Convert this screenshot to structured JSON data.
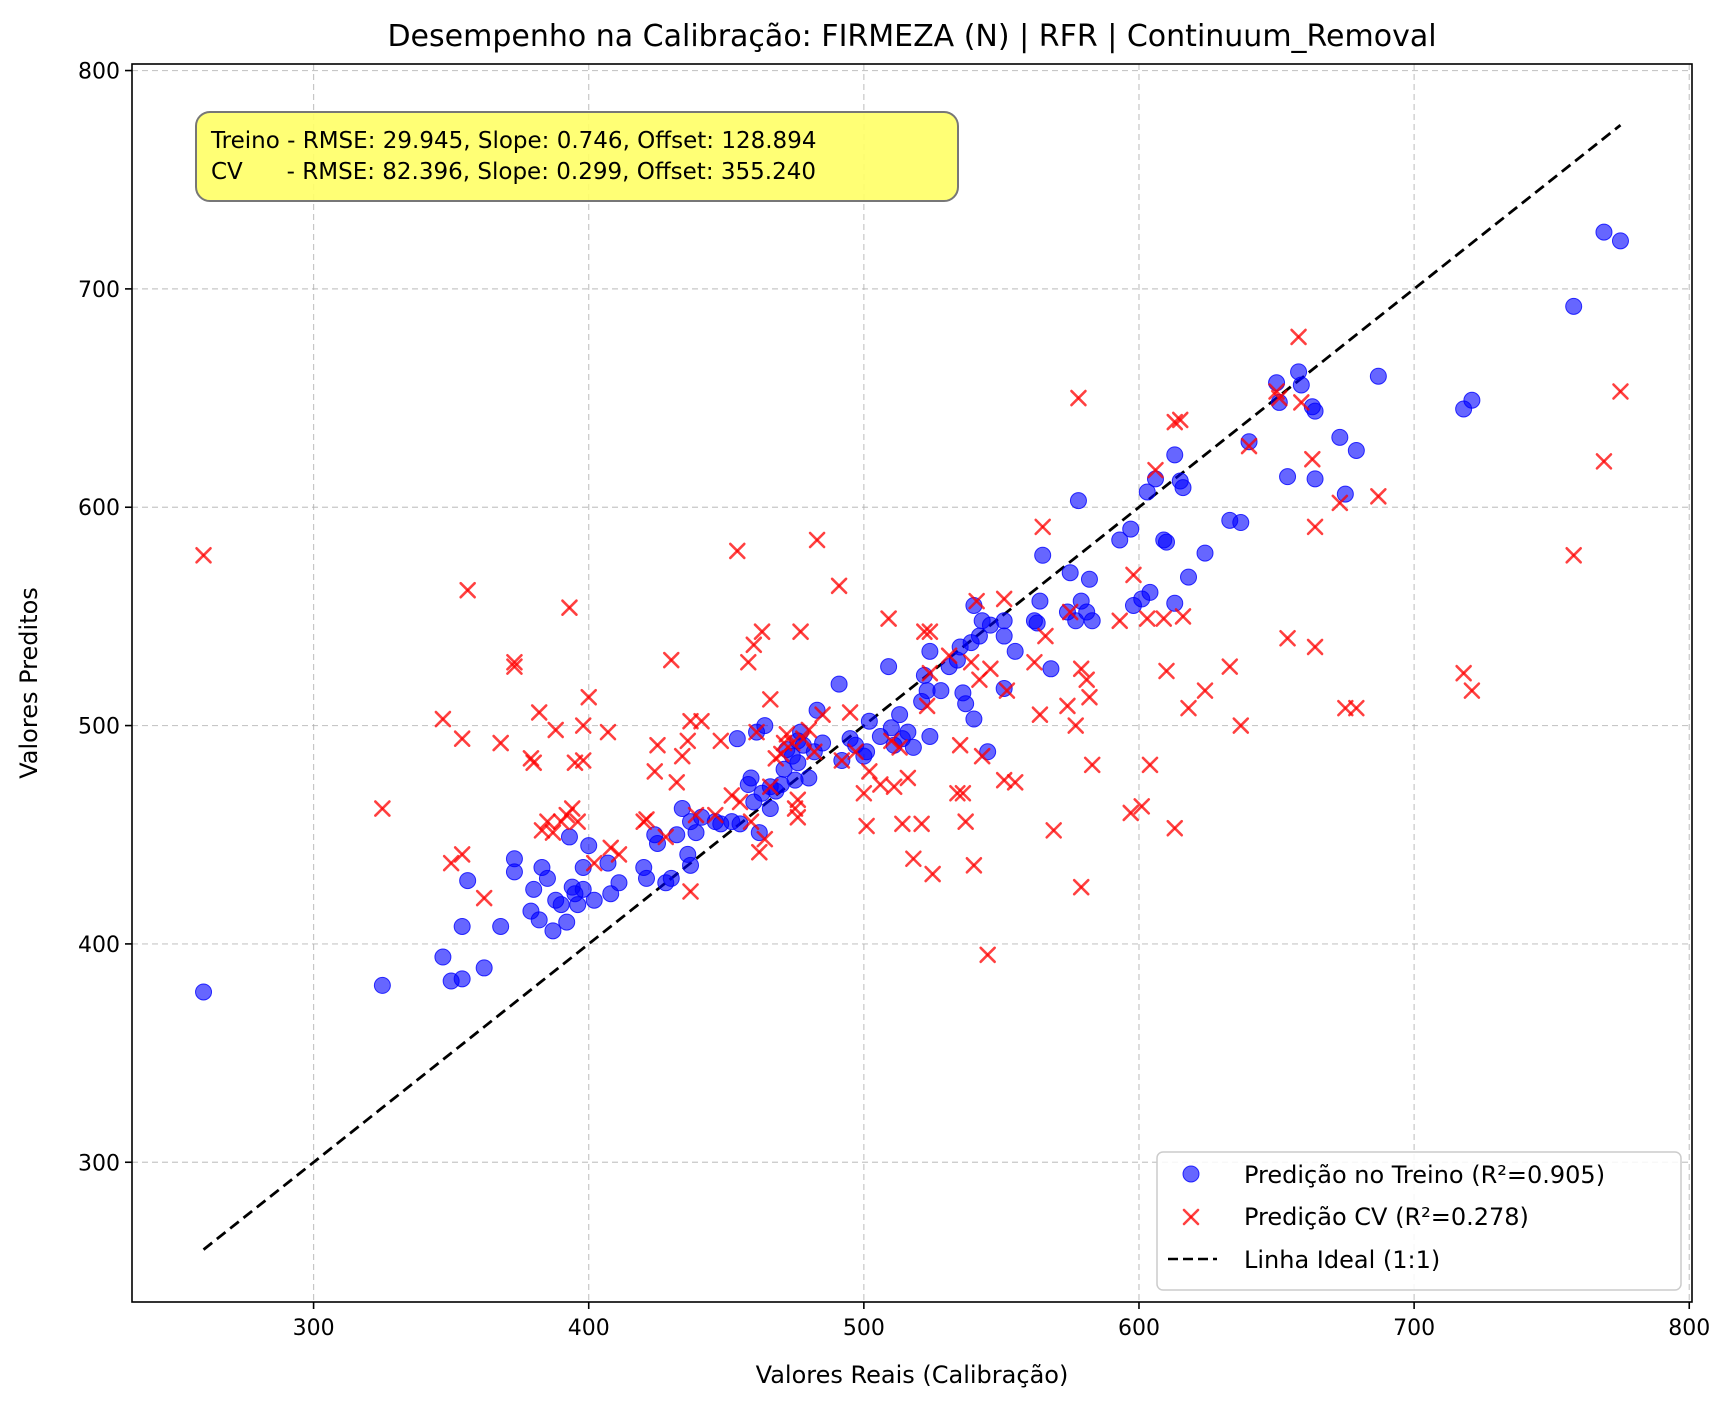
{
  "chart_data": {
    "type": "scatter",
    "title": "Desempenho na Calibração: FIRMEZA (N) | RFR | Continuum_Removal",
    "xlabel": "Valores Reais (Calibração)",
    "ylabel": "Valores Preditos",
    "xlim": [
      234,
      801
    ],
    "ylim": [
      236,
      803
    ],
    "xticks": [
      300,
      400,
      500,
      600,
      700,
      800
    ],
    "yticks": [
      300,
      400,
      500,
      600,
      700,
      800
    ],
    "grid": true,
    "legend_position": "lower-right",
    "annotation": {
      "line1": "Treino - RMSE: 29.945, Slope: 0.746, Offset: 128.894",
      "line2": "CV      - RMSE: 82.396, Slope: 0.299, Offset: 355.240",
      "background": "#ffff66"
    },
    "series": [
      {
        "name": "Predição no Treino (R²=0.905)",
        "marker": "circle",
        "color": "#0000ff",
        "points": [
          [
            260,
            378
          ],
          [
            325,
            381
          ],
          [
            347,
            394
          ],
          [
            350,
            383
          ],
          [
            354,
            384
          ],
          [
            354,
            408
          ],
          [
            356,
            429
          ],
          [
            362,
            389
          ],
          [
            368,
            408
          ],
          [
            373,
            439
          ],
          [
            373,
            433
          ],
          [
            379,
            415
          ],
          [
            380,
            425
          ],
          [
            382,
            411
          ],
          [
            383,
            435
          ],
          [
            385,
            430
          ],
          [
            387,
            406
          ],
          [
            388,
            420
          ],
          [
            390,
            418
          ],
          [
            392,
            410
          ],
          [
            393,
            449
          ],
          [
            394,
            426
          ],
          [
            395,
            423
          ],
          [
            396,
            418
          ],
          [
            398,
            425
          ],
          [
            398,
            435
          ],
          [
            400,
            445
          ],
          [
            402,
            420
          ],
          [
            407,
            437
          ],
          [
            408,
            423
          ],
          [
            411,
            428
          ],
          [
            420,
            435
          ],
          [
            421,
            430
          ],
          [
            424,
            450
          ],
          [
            425,
            446
          ],
          [
            428,
            428
          ],
          [
            430,
            430
          ],
          [
            432,
            450
          ],
          [
            434,
            462
          ],
          [
            436,
            441
          ],
          [
            437,
            436
          ],
          [
            437,
            456
          ],
          [
            439,
            451
          ],
          [
            441,
            458
          ],
          [
            446,
            456
          ],
          [
            448,
            455
          ],
          [
            452,
            456
          ],
          [
            454,
            494
          ],
          [
            455,
            455
          ],
          [
            458,
            473
          ],
          [
            459,
            476
          ],
          [
            460,
            465
          ],
          [
            461,
            497
          ],
          [
            462,
            451
          ],
          [
            463,
            469
          ],
          [
            464,
            500
          ],
          [
            466,
            462
          ],
          [
            466,
            472
          ],
          [
            468,
            470
          ],
          [
            470,
            473
          ],
          [
            471,
            480
          ],
          [
            472,
            489
          ],
          [
            474,
            486
          ],
          [
            475,
            475
          ],
          [
            476,
            493
          ],
          [
            476,
            483
          ],
          [
            477,
            497
          ],
          [
            478,
            491
          ],
          [
            480,
            476
          ],
          [
            482,
            488
          ],
          [
            483,
            507
          ],
          [
            485,
            492
          ],
          [
            491,
            519
          ],
          [
            492,
            484
          ],
          [
            495,
            494
          ],
          [
            497,
            491
          ],
          [
            500,
            486
          ],
          [
            501,
            488
          ],
          [
            502,
            502
          ],
          [
            506,
            495
          ],
          [
            509,
            527
          ],
          [
            510,
            499
          ],
          [
            511,
            491
          ],
          [
            513,
            505
          ],
          [
            514,
            494
          ],
          [
            516,
            497
          ],
          [
            518,
            490
          ],
          [
            521,
            511
          ],
          [
            522,
            523
          ],
          [
            523,
            516
          ],
          [
            524,
            534
          ],
          [
            524,
            495
          ],
          [
            528,
            516
          ],
          [
            531,
            527
          ],
          [
            534,
            530
          ],
          [
            535,
            536
          ],
          [
            536,
            515
          ],
          [
            537,
            510
          ],
          [
            539,
            538
          ],
          [
            540,
            503
          ],
          [
            540,
            555
          ],
          [
            542,
            541
          ],
          [
            543,
            548
          ],
          [
            545,
            488
          ],
          [
            546,
            546
          ],
          [
            551,
            541
          ],
          [
            551,
            548
          ],
          [
            551,
            517
          ],
          [
            555,
            534
          ],
          [
            562,
            548
          ],
          [
            563,
            547
          ],
          [
            564,
            557
          ],
          [
            565,
            578
          ],
          [
            568,
            526
          ],
          [
            574,
            552
          ],
          [
            575,
            570
          ],
          [
            577,
            548
          ],
          [
            578,
            603
          ],
          [
            579,
            557
          ],
          [
            581,
            552
          ],
          [
            582,
            567
          ],
          [
            583,
            548
          ],
          [
            593,
            585
          ],
          [
            597,
            590
          ],
          [
            598,
            555
          ],
          [
            601,
            558
          ],
          [
            603,
            607
          ],
          [
            604,
            561
          ],
          [
            606,
            613
          ],
          [
            609,
            585
          ],
          [
            610,
            584
          ],
          [
            613,
            556
          ],
          [
            613,
            624
          ],
          [
            615,
            612
          ],
          [
            616,
            609
          ],
          [
            618,
            568
          ],
          [
            624,
            579
          ],
          [
            633,
            594
          ],
          [
            637,
            593
          ],
          [
            640,
            630
          ],
          [
            650,
            657
          ],
          [
            651,
            648
          ],
          [
            654,
            614
          ],
          [
            658,
            662
          ],
          [
            659,
            656
          ],
          [
            663,
            646
          ],
          [
            664,
            644
          ],
          [
            664,
            613
          ],
          [
            673,
            632
          ],
          [
            675,
            606
          ],
          [
            679,
            626
          ],
          [
            687,
            660
          ],
          [
            718,
            645
          ],
          [
            721,
            649
          ],
          [
            758,
            692
          ],
          [
            769,
            726
          ],
          [
            775,
            722
          ]
        ]
      },
      {
        "name": "Predição CV (R²=0.278)",
        "marker": "x",
        "color": "#ff0000",
        "points": [
          [
            260,
            578
          ],
          [
            325,
            462
          ],
          [
            347,
            503
          ],
          [
            350,
            437
          ],
          [
            354,
            441
          ],
          [
            354,
            494
          ],
          [
            356,
            562
          ],
          [
            362,
            421
          ],
          [
            368,
            492
          ],
          [
            373,
            529
          ],
          [
            373,
            527
          ],
          [
            379,
            485
          ],
          [
            380,
            483
          ],
          [
            382,
            506
          ],
          [
            383,
            452
          ],
          [
            385,
            456
          ],
          [
            387,
            451
          ],
          [
            388,
            498
          ],
          [
            390,
            456
          ],
          [
            392,
            459
          ],
          [
            393,
            554
          ],
          [
            394,
            462
          ],
          [
            395,
            483
          ],
          [
            396,
            456
          ],
          [
            398,
            500
          ],
          [
            398,
            484
          ],
          [
            400,
            513
          ],
          [
            402,
            437
          ],
          [
            407,
            497
          ],
          [
            408,
            444
          ],
          [
            411,
            441
          ],
          [
            420,
            456
          ],
          [
            421,
            457
          ],
          [
            424,
            479
          ],
          [
            425,
            491
          ],
          [
            428,
            449
          ],
          [
            430,
            530
          ],
          [
            432,
            474
          ],
          [
            434,
            486
          ],
          [
            436,
            493
          ],
          [
            437,
            424
          ],
          [
            437,
            502
          ],
          [
            439,
            459
          ],
          [
            441,
            502
          ],
          [
            446,
            459
          ],
          [
            448,
            493
          ],
          [
            452,
            468
          ],
          [
            454,
            580
          ],
          [
            455,
            465
          ],
          [
            458,
            529
          ],
          [
            459,
            456
          ],
          [
            460,
            537
          ],
          [
            461,
            497
          ],
          [
            462,
            442
          ],
          [
            463,
            543
          ],
          [
            464,
            448
          ],
          [
            466,
            512
          ],
          [
            466,
            472
          ],
          [
            468,
            485
          ],
          [
            470,
            487
          ],
          [
            471,
            492
          ],
          [
            472,
            496
          ],
          [
            474,
            492
          ],
          [
            475,
            462
          ],
          [
            476,
            458
          ],
          [
            476,
            466
          ],
          [
            477,
            543
          ],
          [
            478,
            494
          ],
          [
            480,
            498
          ],
          [
            482,
            488
          ],
          [
            483,
            585
          ],
          [
            485,
            505
          ],
          [
            491,
            564
          ],
          [
            492,
            484
          ],
          [
            495,
            506
          ],
          [
            497,
            488
          ],
          [
            500,
            469
          ],
          [
            501,
            454
          ],
          [
            502,
            479
          ],
          [
            506,
            473
          ],
          [
            509,
            549
          ],
          [
            510,
            493
          ],
          [
            511,
            472
          ],
          [
            513,
            490
          ],
          [
            514,
            455
          ],
          [
            516,
            476
          ],
          [
            518,
            439
          ],
          [
            521,
            455
          ],
          [
            522,
            543
          ],
          [
            523,
            509
          ],
          [
            524,
            524
          ],
          [
            524,
            543
          ],
          [
            525,
            432
          ],
          [
            531,
            532
          ],
          [
            534,
            469
          ],
          [
            535,
            491
          ],
          [
            536,
            469
          ],
          [
            537,
            456
          ],
          [
            539,
            529
          ],
          [
            540,
            436
          ],
          [
            541,
            557
          ],
          [
            542,
            521
          ],
          [
            543,
            486
          ],
          [
            545,
            395
          ],
          [
            546,
            526
          ],
          [
            551,
            558
          ],
          [
            551,
            475
          ],
          [
            552,
            516
          ],
          [
            555,
            474
          ],
          [
            562,
            529
          ],
          [
            564,
            505
          ],
          [
            565,
            591
          ],
          [
            566,
            541
          ],
          [
            569,
            452
          ],
          [
            574,
            509
          ],
          [
            575,
            552
          ],
          [
            577,
            500
          ],
          [
            578,
            650
          ],
          [
            579,
            526
          ],
          [
            579,
            426
          ],
          [
            581,
            521
          ],
          [
            582,
            513
          ],
          [
            583,
            482
          ],
          [
            593,
            548
          ],
          [
            597,
            460
          ],
          [
            598,
            569
          ],
          [
            601,
            463
          ],
          [
            603,
            549
          ],
          [
            604,
            482
          ],
          [
            606,
            617
          ],
          [
            609,
            549
          ],
          [
            610,
            525
          ],
          [
            613,
            639
          ],
          [
            613,
            453
          ],
          [
            615,
            640
          ],
          [
            616,
            550
          ],
          [
            618,
            508
          ],
          [
            624,
            516
          ],
          [
            633,
            527
          ],
          [
            637,
            500
          ],
          [
            640,
            628
          ],
          [
            650,
            653
          ],
          [
            651,
            650
          ],
          [
            654,
            540
          ],
          [
            658,
            678
          ],
          [
            659,
            648
          ],
          [
            663,
            622
          ],
          [
            664,
            536
          ],
          [
            664,
            591
          ],
          [
            673,
            602
          ],
          [
            675,
            508
          ],
          [
            679,
            508
          ],
          [
            687,
            605
          ],
          [
            718,
            524
          ],
          [
            721,
            516
          ],
          [
            758,
            578
          ],
          [
            769,
            621
          ],
          [
            775,
            653
          ]
        ]
      },
      {
        "name": "Linha Ideal (1:1)",
        "marker": "dashed-line",
        "color": "#000000",
        "points": [
          [
            260,
            260
          ],
          [
            775,
            775
          ]
        ]
      }
    ]
  }
}
